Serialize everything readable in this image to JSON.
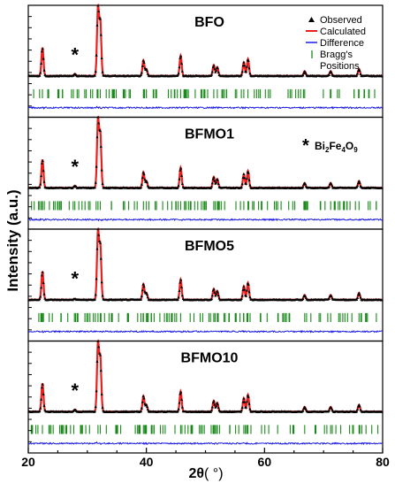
{
  "chart_data": {
    "type": "line",
    "xlabel_main": "2θ",
    "xlabel_unit": "( °)",
    "ylabel": "Intensity (a.u.)",
    "xlim": [
      20,
      80
    ],
    "x_ticks": [
      20,
      40,
      60,
      80
    ],
    "legend": {
      "placement": "top-right",
      "entries": [
        {
          "label": "Observed",
          "marker": "triangle",
          "color": "#000000"
        },
        {
          "label": "Calculated",
          "marker": "line",
          "color": "#e8201e"
        },
        {
          "label": "Difference",
          "marker": "line",
          "color": "#1a1ae6"
        },
        {
          "label": "Bragg's",
          "label2": "Positions",
          "marker": "tick",
          "color": "#1a8a1a"
        }
      ]
    },
    "impurity_note": {
      "star": "*",
      "text": "Bi",
      "sub1": "2",
      "mid": "Fe",
      "sub2": "4",
      "end": "O",
      "sub3": "9"
    },
    "impurity_peak_x": 27.9,
    "peaks": [
      {
        "x": 22.4,
        "rel": 0.42
      },
      {
        "x": 27.9,
        "rel": 0.03
      },
      {
        "x": 31.8,
        "rel": 1.0
      },
      {
        "x": 32.2,
        "rel": 0.78
      },
      {
        "x": 39.5,
        "rel": 0.23
      },
      {
        "x": 40.0,
        "rel": 0.1
      },
      {
        "x": 45.8,
        "rel": 0.3
      },
      {
        "x": 51.4,
        "rel": 0.16
      },
      {
        "x": 52.0,
        "rel": 0.13
      },
      {
        "x": 56.5,
        "rel": 0.2
      },
      {
        "x": 57.2,
        "rel": 0.25
      },
      {
        "x": 66.8,
        "rel": 0.07
      },
      {
        "x": 71.2,
        "rel": 0.07
      },
      {
        "x": 76.0,
        "rel": 0.1
      }
    ],
    "panels": [
      {
        "name": "BFO",
        "star_x": 27.9
      },
      {
        "name": "BFMO1",
        "star_x": 27.9
      },
      {
        "name": "BFMO5",
        "star_x": 27.9
      },
      {
        "name": "BFMO10",
        "star_x": 27.9
      }
    ],
    "colors": {
      "observed": "#000000",
      "calculated": "#e8201e",
      "difference": "#1a1ae6",
      "bragg": "#1a8a1a"
    }
  }
}
